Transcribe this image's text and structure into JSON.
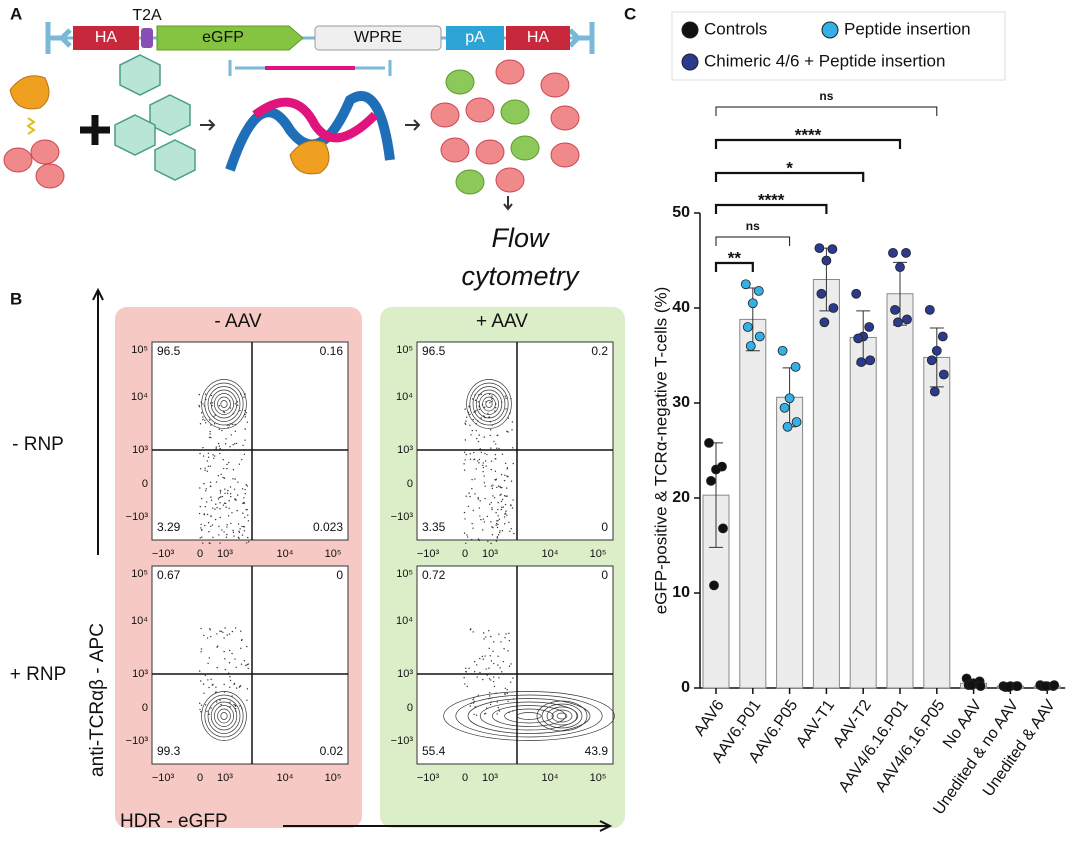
{
  "panel_labels": [
    "A",
    "B",
    "C"
  ],
  "panel_a": {
    "construct": [
      "HA",
      "T2A",
      "eGFP",
      "WPRE",
      "pA",
      "HA"
    ],
    "readout": [
      "Flow",
      "cytometry"
    ]
  },
  "panel_b": {
    "columns": [
      "- AAV",
      "+ AAV"
    ],
    "rows": [
      "- RNP",
      "+ RNP"
    ],
    "y_axis": "anti-TCRαβ - APC",
    "x_axis": "HDR - eGFP",
    "y_tick_labels": [
      "10⁵",
      "10⁴",
      "10³",
      "0",
      "−10³"
    ],
    "x_tick_labels": [
      "−10³",
      "0",
      "10³",
      "10⁴",
      "10⁵"
    ],
    "plots": [
      [
        96.5,
        0.16,
        3.29,
        0.023
      ],
      [
        96.5,
        0.2,
        3.35,
        0
      ],
      [
        0.67,
        0,
        99.3,
        0.02
      ],
      [
        0.72,
        0,
        55.4,
        43.9
      ]
    ]
  },
  "chart_data": {
    "type": "bar",
    "ylabel": "eGFP-positive & TCRα-negative T-cells (%)",
    "categories": [
      "AAV6",
      "AAV6.P01",
      "AAV6.P05",
      "AAV-T1",
      "AAV-T2",
      "AAV4/6.16.P01",
      "AAV4/6.16.P05",
      "No AAV",
      "Unedited & no AAV",
      "Unedited & AAV"
    ],
    "values": [
      20.3,
      38.8,
      30.6,
      43.0,
      36.9,
      41.5,
      34.8,
      0.5,
      0.2,
      0.2
    ],
    "errors": [
      5.5,
      3.3,
      3.1,
      3.3,
      2.8,
      3.3,
      3.1,
      0.3,
      0.05,
      0.05
    ],
    "points": [
      [
        25.8,
        23.3,
        23.0,
        21.8,
        16.8,
        10.8
      ],
      [
        42.5,
        41.8,
        40.5,
        38.0,
        37.0,
        36.0
      ],
      [
        35.5,
        33.8,
        30.5,
        29.5,
        28.0,
        27.5
      ],
      [
        46.3,
        46.2,
        45.0,
        41.5,
        40.0,
        38.5
      ],
      [
        41.5,
        38.0,
        37.0,
        36.8,
        34.5,
        34.3
      ],
      [
        45.8,
        45.8,
        44.3,
        39.8,
        38.8,
        38.5
      ],
      [
        39.8,
        37.0,
        35.5,
        34.5,
        33.0,
        31.2
      ],
      [
        1.0,
        0.7,
        0.5,
        0.3,
        0.2,
        0.3
      ],
      [
        0.2,
        0.2,
        0.2,
        0.1,
        0.2,
        0.1
      ],
      [
        0.3,
        0.2,
        0.2,
        0.2,
        0.3,
        0.2
      ]
    ],
    "point_group": [
      0,
      1,
      1,
      2,
      2,
      2,
      2,
      0,
      0,
      0
    ],
    "legend": [
      {
        "name": "Controls",
        "color": "#111111"
      },
      {
        "name": "Peptide insertion",
        "color": "#33b0e6"
      },
      {
        "name": "Chimeric 4/6 + Peptide insertion",
        "color": "#2b3a8c"
      }
    ],
    "bar_color": "#ececec",
    "comparisons": [
      {
        "to": 1,
        "label": "**"
      },
      {
        "to": 2,
        "label": "ns"
      },
      {
        "to": 3,
        "label": "****"
      },
      {
        "to": 4,
        "label": "*"
      },
      {
        "to": 5,
        "label": "****"
      },
      {
        "to": 6,
        "label": "ns"
      }
    ],
    "ylim": [
      0,
      50
    ],
    "yticks": [
      0,
      10,
      20,
      30,
      40,
      50
    ]
  }
}
